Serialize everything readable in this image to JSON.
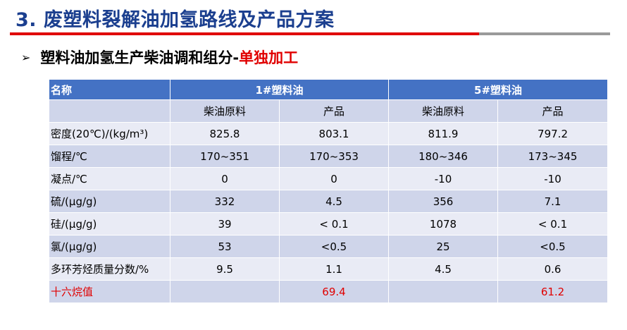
{
  "slide": {
    "title": "3. 废塑料裂解油加氢路线及产品方案",
    "subtitle_bullet": "➢",
    "subtitle_main": "塑料油加氢生产柴油调和组分-",
    "subtitle_highlight": "单独加工"
  },
  "table": {
    "header": {
      "name": "名称",
      "group1": "1#塑料油",
      "group2": "5#塑料油"
    },
    "subheader": [
      "",
      "柴油原料",
      "产品",
      "柴油原料",
      "产品"
    ],
    "rows": [
      {
        "label": "密度(20℃)/(kg/m³)",
        "values": [
          "825.8",
          "803.1",
          "811.9",
          "797.2"
        ]
      },
      {
        "label": "馏程/℃",
        "values": [
          "170~351",
          "170~353",
          "180~346",
          "173~345"
        ]
      },
      {
        "label": "凝点/℃",
        "values": [
          "0",
          "0",
          "-10",
          "-10"
        ]
      },
      {
        "label": "硫/(μg/g)",
        "values": [
          "332",
          "4.5",
          "356",
          "7.1"
        ]
      },
      {
        "label": "硅/(μg/g)",
        "values": [
          "39",
          "< 0.1",
          "1078",
          "< 0.1"
        ]
      },
      {
        "label": "氯/(μg/g)",
        "values": [
          "53",
          "<0.5",
          "25",
          "<0.5"
        ]
      },
      {
        "label": "多环芳烃质量分数/%",
        "values": [
          "9.5",
          "1.1",
          "4.5",
          "0.6"
        ]
      },
      {
        "label": "十六烷值",
        "values": [
          "",
          "69.4",
          "",
          "61.2"
        ]
      }
    ]
  },
  "colors": {
    "title_blue": "#1b3f8f",
    "accent_red": "#e00000",
    "header_blue": "#4472c4",
    "row_dark": "#cfd5ea",
    "row_light": "#e9ebf5"
  }
}
